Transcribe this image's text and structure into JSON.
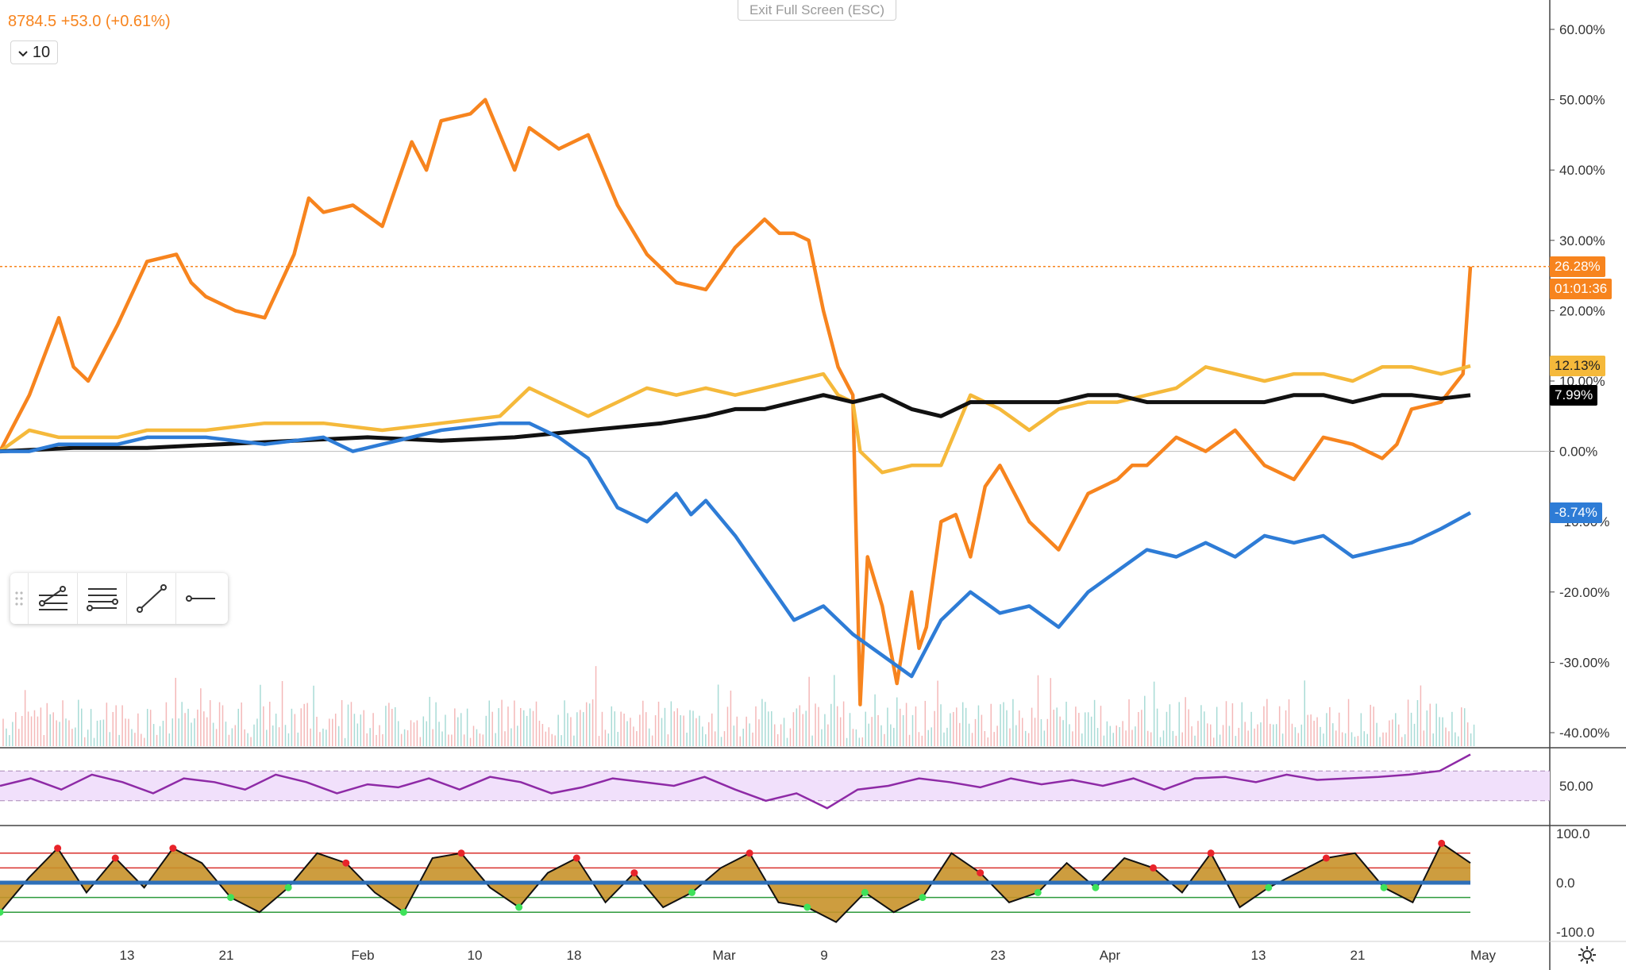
{
  "ticker": {
    "price": "8784.5",
    "change": "+53.0 (+0.61%)"
  },
  "interval": {
    "label": "10"
  },
  "exit_fullscreen": "Exit Full Screen (ESC)",
  "price_tags": [
    {
      "text": "26.28%",
      "bg": "#f7841e",
      "fg": "#ffffff"
    },
    {
      "text": "01:01:36",
      "bg": "#f7841e",
      "fg": "#ffffff"
    },
    {
      "text": "12.13%",
      "bg": "#f5b93b",
      "fg": "#222222"
    },
    {
      "text": "7.99%",
      "bg": "#000000",
      "fg": "#ffffff"
    },
    {
      "text": "-8.74%",
      "bg": "#2e7cd6",
      "fg": "#ffffff"
    }
  ],
  "colors": {
    "orange": "#f7841e",
    "yellow": "#f5b93b",
    "black": "#111111",
    "blue": "#2e7cd6",
    "rsi": "#8e2aa6",
    "rsi_band": "#f1e0fb",
    "osc_fill": "#c8922a",
    "osc_line": "#2e6fb8"
  },
  "toolbar_icons": [
    "drag-handle-icon",
    "fib-retracement-icon",
    "parallel-channel-icon",
    "trend-line-icon",
    "horizontal-ray-icon"
  ],
  "settings_icon": "gear-icon",
  "chart_data": [
    {
      "type": "line",
      "panel": "main",
      "x_ticks": [
        "13",
        "21",
        "Feb",
        "10",
        "18",
        "Mar",
        "9",
        "23",
        "Apr",
        "13",
        "21",
        "May"
      ],
      "y_ticks": [
        "60.00%",
        "50.00%",
        "40.00%",
        "30.00%",
        "20.00%",
        "10.00%",
        "0.00%",
        "-10.00%",
        "-20.00%",
        "-30.00%",
        "-40.00%"
      ],
      "ylim": [
        -40,
        60
      ],
      "x_domain": [
        0,
        1
      ],
      "series": [
        {
          "color": "orange",
          "last": 26.28,
          "x": [
            0,
            0.02,
            0.04,
            0.05,
            0.06,
            0.08,
            0.1,
            0.12,
            0.13,
            0.14,
            0.16,
            0.18,
            0.2,
            0.21,
            0.22,
            0.24,
            0.26,
            0.28,
            0.29,
            0.3,
            0.32,
            0.33,
            0.34,
            0.35,
            0.36,
            0.38,
            0.4,
            0.42,
            0.44,
            0.46,
            0.48,
            0.5,
            0.52,
            0.53,
            0.54,
            0.55,
            0.56,
            0.57,
            0.58,
            0.585,
            0.59,
            0.6,
            0.61,
            0.62,
            0.625,
            0.63,
            0.64,
            0.65,
            0.66,
            0.67,
            0.68,
            0.7,
            0.72,
            0.74,
            0.76,
            0.77,
            0.78,
            0.8,
            0.82,
            0.84,
            0.86,
            0.88,
            0.9,
            0.92,
            0.94,
            0.95,
            0.96,
            0.98,
            0.995,
            1
          ],
          "y": [
            0,
            8,
            19,
            12,
            10,
            18,
            27,
            28,
            24,
            22,
            20,
            19,
            28,
            36,
            34,
            35,
            32,
            44,
            40,
            47,
            48,
            50,
            45,
            40,
            46,
            43,
            45,
            35,
            28,
            24,
            23,
            29,
            33,
            31,
            31,
            30,
            20,
            12,
            8,
            -36,
            -15,
            -22,
            -33,
            -20,
            -28,
            -25,
            -10,
            -9,
            -15,
            -5,
            -2,
            -10,
            -14,
            -6,
            -4,
            -2,
            -2,
            2,
            0,
            3,
            -2,
            -4,
            2,
            1,
            -1,
            1,
            6,
            7,
            11,
            26.28
          ]
        },
        {
          "color": "yellow",
          "last": 12.13,
          "x": [
            0,
            0.02,
            0.04,
            0.06,
            0.08,
            0.1,
            0.14,
            0.18,
            0.22,
            0.26,
            0.3,
            0.34,
            0.36,
            0.38,
            0.4,
            0.42,
            0.44,
            0.46,
            0.48,
            0.5,
            0.52,
            0.54,
            0.56,
            0.57,
            0.58,
            0.585,
            0.6,
            0.62,
            0.64,
            0.66,
            0.68,
            0.7,
            0.72,
            0.74,
            0.76,
            0.78,
            0.8,
            0.82,
            0.84,
            0.86,
            0.88,
            0.9,
            0.92,
            0.94,
            0.96,
            0.98,
            1
          ],
          "y": [
            0,
            3,
            2,
            2,
            2,
            3,
            3,
            4,
            4,
            3,
            4,
            5,
            9,
            7,
            5,
            7,
            9,
            8,
            9,
            8,
            9,
            10,
            11,
            8,
            7,
            0,
            -3,
            -2,
            -2,
            8,
            6,
            3,
            6,
            7,
            7,
            8,
            9,
            12,
            11,
            10,
            11,
            11,
            10,
            12,
            12,
            11,
            12.13
          ]
        },
        {
          "color": "black",
          "last": 7.99,
          "x": [
            0,
            0.05,
            0.1,
            0.15,
            0.2,
            0.25,
            0.3,
            0.35,
            0.4,
            0.45,
            0.48,
            0.5,
            0.52,
            0.54,
            0.56,
            0.58,
            0.6,
            0.62,
            0.64,
            0.66,
            0.68,
            0.7,
            0.72,
            0.74,
            0.76,
            0.78,
            0.8,
            0.82,
            0.84,
            0.86,
            0.88,
            0.9,
            0.92,
            0.94,
            0.96,
            0.98,
            1
          ],
          "y": [
            0,
            0.5,
            0.5,
            1,
            1.5,
            2,
            1.5,
            2,
            3,
            4,
            5,
            6,
            6,
            7,
            8,
            7,
            8,
            6,
            5,
            7,
            7,
            7,
            7,
            8,
            8,
            7,
            7,
            7,
            7,
            7,
            8,
            8,
            7,
            8,
            8,
            7.5,
            7.99
          ]
        },
        {
          "color": "blue",
          "last": -8.74,
          "x": [
            0,
            0.02,
            0.04,
            0.06,
            0.08,
            0.1,
            0.14,
            0.18,
            0.22,
            0.24,
            0.26,
            0.3,
            0.34,
            0.36,
            0.38,
            0.4,
            0.42,
            0.44,
            0.46,
            0.47,
            0.48,
            0.5,
            0.52,
            0.54,
            0.56,
            0.58,
            0.6,
            0.62,
            0.64,
            0.66,
            0.68,
            0.7,
            0.72,
            0.74,
            0.76,
            0.78,
            0.8,
            0.82,
            0.84,
            0.86,
            0.88,
            0.9,
            0.92,
            0.94,
            0.96,
            0.98,
            1
          ],
          "y": [
            0,
            0,
            1,
            1,
            1,
            2,
            2,
            1,
            2,
            0,
            1,
            3,
            4,
            4,
            2,
            -1,
            -8,
            -10,
            -6,
            -9,
            -7,
            -12,
            -18,
            -24,
            -22,
            -26,
            -29,
            -32,
            -24,
            -20,
            -23,
            -22,
            -25,
            -20,
            -17,
            -14,
            -15,
            -13,
            -15,
            -12,
            -13,
            -12,
            -15,
            -14,
            -13,
            -11,
            -8.74
          ]
        }
      ]
    },
    {
      "type": "line",
      "panel": "rsi",
      "y_ticks": [
        "50.00"
      ],
      "band": [
        30,
        70
      ],
      "ylim": [
        0,
        100
      ],
      "values": [
        50,
        60,
        45,
        65,
        55,
        40,
        60,
        55,
        45,
        65,
        55,
        40,
        52,
        48,
        60,
        45,
        62,
        55,
        40,
        48,
        60,
        55,
        50,
        62,
        45,
        30,
        40,
        20,
        45,
        50,
        60,
        55,
        48,
        60,
        52,
        58,
        50,
        60,
        45,
        60,
        62,
        55,
        65,
        58,
        60,
        62,
        65,
        70,
        92
      ]
    },
    {
      "type": "area",
      "panel": "oscillator",
      "y_ticks": [
        "100.0",
        "0.0",
        "-100.0"
      ],
      "levels": [
        60,
        30,
        -30,
        -60
      ],
      "ylim": [
        -100,
        100
      ],
      "values": [
        -60,
        10,
        70,
        -20,
        50,
        -10,
        70,
        40,
        -30,
        -60,
        -10,
        60,
        40,
        -20,
        -60,
        50,
        60,
        -10,
        -50,
        20,
        50,
        -40,
        20,
        -50,
        -20,
        30,
        60,
        -40,
        -50,
        -80,
        -20,
        -60,
        -30,
        60,
        20,
        -40,
        -20,
        40,
        -10,
        50,
        30,
        -20,
        60,
        -50,
        -10,
        20,
        50,
        60,
        -10,
        -40,
        80,
        40
      ]
    }
  ]
}
